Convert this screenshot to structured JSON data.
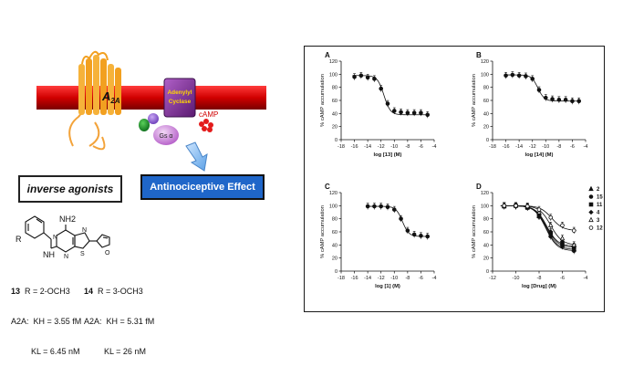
{
  "scheme": {
    "receptor_label": "A2A",
    "enzyme_label_line1": "Adenylyl",
    "enzyme_label_line2": "Cyclase",
    "gs_label": "Gs α",
    "camp_label": "cAMP",
    "inverse_agonists_label": "inverse agonists",
    "effect_label": "Antinociceptive Effect"
  },
  "structure": {
    "nh2_label": "NH2",
    "nh_label": "NH",
    "r_label": "R",
    "n_label": "N",
    "s_label": "S",
    "o_label": "O"
  },
  "compounds": [
    {
      "number": "13",
      "substituent": "R = 2-OCH3",
      "row2_prefix": "A2A:",
      "kh": "KH = 3.55 fM",
      "kl": "KL = 6.45 nM"
    },
    {
      "number": "14",
      "substituent": "R = 3-OCH3",
      "row2_prefix": "A2A:",
      "kh": "KH = 5.31 fM",
      "kl": "KL = 26 nM"
    }
  ],
  "chart_data": [
    {
      "type": "line",
      "panel": "A",
      "xlabel": "log [13] (M)",
      "ylabel": "% cAMP accumulation",
      "xlim": [
        -18,
        -4
      ],
      "ylim": [
        0,
        120
      ],
      "xticks": [
        -18,
        -16,
        -14,
        -12,
        -10,
        -8,
        -6,
        -4
      ],
      "yticks": [
        0,
        20,
        40,
        60,
        80,
        100,
        120
      ],
      "series": [
        {
          "x": [
            -16,
            -15,
            -14,
            -13,
            -12,
            -11,
            -10,
            -9,
            -8,
            -7,
            -6,
            -5
          ],
          "y": [
            96,
            98,
            95,
            93,
            78,
            55,
            44,
            42,
            41,
            41,
            41,
            38
          ]
        }
      ]
    },
    {
      "type": "line",
      "panel": "B",
      "xlabel": "log [14] (M)",
      "ylabel": "% cAMP accumulation",
      "xlim": [
        -18,
        -4
      ],
      "ylim": [
        0,
        120
      ],
      "xticks": [
        -18,
        -16,
        -14,
        -12,
        -10,
        -8,
        -6,
        -4
      ],
      "yticks": [
        0,
        20,
        40,
        60,
        80,
        100,
        120
      ],
      "series": [
        {
          "x": [
            -16,
            -15,
            -14,
            -13,
            -12,
            -11,
            -10,
            -9,
            -8,
            -7,
            -6,
            -5
          ],
          "y": [
            98,
            99,
            98,
            97,
            93,
            76,
            64,
            62,
            61,
            61,
            59,
            59
          ]
        }
      ]
    },
    {
      "type": "line",
      "panel": "C",
      "xlabel": "log [1] (M)",
      "ylabel": "% cAMP accumulation",
      "xlim": [
        -18,
        -4
      ],
      "ylim": [
        0,
        120
      ],
      "xticks": [
        -18,
        -16,
        -14,
        -12,
        -10,
        -8,
        -6,
        -4
      ],
      "yticks": [
        0,
        20,
        40,
        60,
        80,
        100,
        120
      ],
      "series": [
        {
          "x": [
            -14,
            -13,
            -12,
            -11,
            -10,
            -9,
            -8,
            -7,
            -6,
            -5
          ],
          "y": [
            99,
            99,
            99,
            98,
            94,
            80,
            62,
            56,
            54,
            53
          ]
        }
      ]
    },
    {
      "type": "line",
      "panel": "D",
      "xlabel": "log [Drug] (M)",
      "ylabel": "% cAMP accumulation",
      "xlim": [
        -12,
        -4
      ],
      "ylim": [
        0,
        120
      ],
      "xticks": [
        -12,
        -10,
        -8,
        -6,
        -4
      ],
      "yticks": [
        0,
        20,
        40,
        60,
        80,
        100,
        120
      ],
      "legend_position": "top-right",
      "series": [
        {
          "name": "2",
          "marker": "triangle-filled",
          "x": [
            -11,
            -10,
            -9,
            -8,
            -7,
            -6,
            -5
          ],
          "y": [
            100,
            100,
            98,
            84,
            55,
            40,
            33
          ]
        },
        {
          "name": "15",
          "marker": "circle-filled",
          "x": [
            -11,
            -10,
            -9,
            -8,
            -7,
            -6,
            -5
          ],
          "y": [
            100,
            99,
            97,
            83,
            53,
            38,
            31
          ]
        },
        {
          "name": "11",
          "marker": "square-filled",
          "x": [
            -11,
            -10,
            -9,
            -8,
            -7,
            -6,
            -5
          ],
          "y": [
            99,
            100,
            97,
            85,
            58,
            42,
            36
          ]
        },
        {
          "name": "4",
          "marker": "diamond-filled",
          "x": [
            -11,
            -10,
            -9,
            -8,
            -7,
            -6,
            -5
          ],
          "y": [
            100,
            99,
            98,
            86,
            60,
            45,
            38
          ]
        },
        {
          "name": "3",
          "marker": "triangle-open",
          "x": [
            -11,
            -10,
            -9,
            -8,
            -7,
            -6,
            -5
          ],
          "y": [
            100,
            100,
            99,
            90,
            70,
            50,
            40
          ]
        },
        {
          "name": "12",
          "marker": "circle-open",
          "x": [
            -11,
            -10,
            -9,
            -8,
            -7,
            -6,
            -5
          ],
          "y": [
            100,
            100,
            99,
            94,
            82,
            70,
            62
          ]
        }
      ]
    }
  ]
}
